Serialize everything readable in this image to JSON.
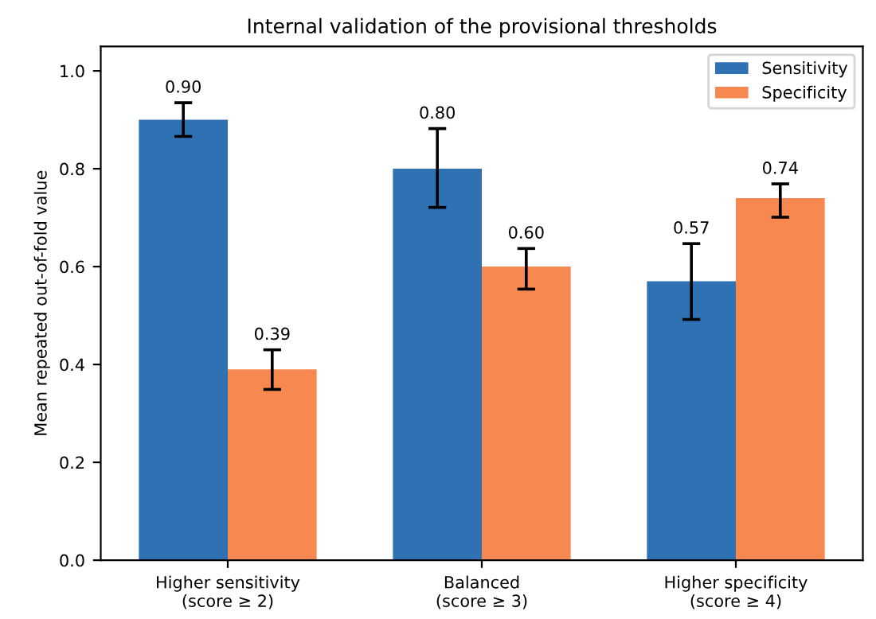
{
  "chart_data": {
    "type": "bar",
    "title": "Internal validation of the provisional thresholds",
    "ylabel": "Mean repeated out-of-fold value",
    "categories": [
      "Higher sensitivity\n(score ≥ 2)",
      "Balanced\n(score ≥ 3)",
      "Higher specificity\n(score ≥ 4)"
    ],
    "series": [
      {
        "name": "Sensitivity",
        "color": "#2e72b4",
        "values": [
          0.9,
          0.8,
          0.57
        ],
        "value_labels": [
          "0.90",
          "0.80",
          "0.57"
        ],
        "errors": [
          [
            0.866,
            0.935
          ],
          [
            0.721,
            0.882
          ],
          [
            0.492,
            0.647
          ]
        ]
      },
      {
        "name": "Specificity",
        "color": "#f7884f",
        "values": [
          0.39,
          0.6,
          0.74
        ],
        "value_labels": [
          "0.39",
          "0.60",
          "0.74"
        ],
        "errors": [
          [
            0.349,
            0.43
          ],
          [
            0.554,
            0.637
          ],
          [
            0.701,
            0.769
          ]
        ]
      }
    ],
    "ylim": [
      0,
      1.05
    ],
    "yticks": [
      {
        "value": 0,
        "label": "0.0"
      },
      0.2,
      0.4,
      0.6,
      0.8,
      {
        "value": 1,
        "label": "1.0"
      }
    ],
    "legend": "top right",
    "grid": false
  }
}
